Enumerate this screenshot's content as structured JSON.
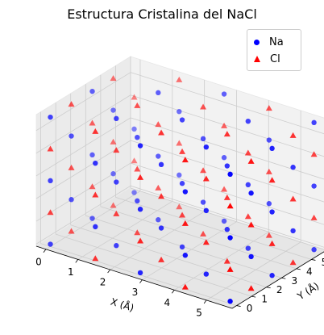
{
  "chart_data": {
    "type": "scatter",
    "projection": "3d",
    "title": "Estructura Cristalina del NaCl",
    "xlabel": "X (Å)",
    "ylabel": "Y (Å)",
    "zlabel": "",
    "xlim": [
      -0.3,
      5.8
    ],
    "ylim": [
      -0.3,
      6.0
    ],
    "zlim": [
      -0.1,
      5.7
    ],
    "xticks": [
      "0",
      "1",
      "2",
      "3",
      "4",
      "5"
    ],
    "yticks": [
      "0",
      "1",
      "2",
      "3",
      "4",
      "5",
      "6"
    ],
    "zticks": [
      "0",
      "1",
      "2",
      "3",
      "4",
      "5"
    ],
    "grid": true,
    "legend_position": "top-right",
    "series": [
      {
        "name": "Na",
        "color": "#0000ff",
        "marker": "circle",
        "points": [
          [
            0,
            0,
            0
          ],
          [
            0,
            2.8,
            0
          ],
          [
            2.8,
            0,
            0
          ],
          [
            2.8,
            2.8,
            0
          ],
          [
            5.6,
            0,
            0
          ],
          [
            0,
            5.6,
            0
          ],
          [
            5.6,
            5.6,
            0
          ],
          [
            5.6,
            2.8,
            0
          ],
          [
            2.8,
            5.6,
            0
          ],
          [
            1.4,
            1.4,
            0
          ],
          [
            4.2,
            1.4,
            0
          ],
          [
            1.4,
            4.2,
            0
          ],
          [
            4.2,
            4.2,
            0
          ],
          [
            1.4,
            0,
            1.4
          ],
          [
            4.2,
            0,
            1.4
          ],
          [
            0,
            1.4,
            1.4
          ],
          [
            2.8,
            1.4,
            1.4
          ],
          [
            5.6,
            1.4,
            1.4
          ],
          [
            1.4,
            2.8,
            1.4
          ],
          [
            4.2,
            2.8,
            1.4
          ],
          [
            0,
            4.2,
            1.4
          ],
          [
            2.8,
            4.2,
            1.4
          ],
          [
            5.6,
            4.2,
            1.4
          ],
          [
            1.4,
            5.6,
            1.4
          ],
          [
            4.2,
            5.6,
            1.4
          ],
          [
            0,
            0,
            2.8
          ],
          [
            2.8,
            0,
            2.8
          ],
          [
            5.6,
            0,
            2.8
          ],
          [
            1.4,
            1.4,
            2.8
          ],
          [
            4.2,
            1.4,
            2.8
          ],
          [
            0,
            2.8,
            2.8
          ],
          [
            2.8,
            2.8,
            2.8
          ],
          [
            5.6,
            2.8,
            2.8
          ],
          [
            1.4,
            4.2,
            2.8
          ],
          [
            4.2,
            4.2,
            2.8
          ],
          [
            0,
            5.6,
            2.8
          ],
          [
            2.8,
            5.6,
            2.8
          ],
          [
            5.6,
            5.6,
            2.8
          ],
          [
            1.4,
            0,
            4.2
          ],
          [
            4.2,
            0,
            4.2
          ],
          [
            0,
            1.4,
            4.2
          ],
          [
            2.8,
            1.4,
            4.2
          ],
          [
            5.6,
            1.4,
            4.2
          ],
          [
            1.4,
            2.8,
            4.2
          ],
          [
            4.2,
            2.8,
            4.2
          ],
          [
            0,
            4.2,
            4.2
          ],
          [
            2.8,
            4.2,
            4.2
          ],
          [
            5.6,
            4.2,
            4.2
          ],
          [
            1.4,
            5.6,
            4.2
          ],
          [
            4.2,
            5.6,
            4.2
          ],
          [
            0,
            0,
            5.6
          ],
          [
            2.8,
            0,
            5.6
          ],
          [
            5.6,
            0,
            5.6
          ],
          [
            1.4,
            1.4,
            5.6
          ],
          [
            4.2,
            1.4,
            5.6
          ],
          [
            0,
            2.8,
            5.6
          ],
          [
            2.8,
            2.8,
            5.6
          ],
          [
            5.6,
            2.8,
            5.6
          ],
          [
            1.4,
            4.2,
            5.6
          ],
          [
            4.2,
            4.2,
            5.6
          ],
          [
            2.8,
            5.6,
            5.6
          ],
          [
            5.6,
            5.6,
            5.6
          ]
        ]
      },
      {
        "name": "Cl",
        "color": "#ff0000",
        "marker": "triangle",
        "points": [
          [
            1.4,
            0,
            0
          ],
          [
            4.2,
            0,
            0
          ],
          [
            0,
            1.4,
            0
          ],
          [
            2.8,
            1.4,
            0
          ],
          [
            5.6,
            1.4,
            0
          ],
          [
            1.4,
            2.8,
            0
          ],
          [
            4.2,
            2.8,
            0
          ],
          [
            0,
            4.2,
            0
          ],
          [
            2.8,
            4.2,
            0
          ],
          [
            5.6,
            4.2,
            0
          ],
          [
            1.4,
            5.6,
            0
          ],
          [
            4.2,
            5.6,
            0
          ],
          [
            0,
            0,
            1.4
          ],
          [
            2.8,
            0,
            1.4
          ],
          [
            5.6,
            0,
            1.4
          ],
          [
            1.4,
            1.4,
            1.4
          ],
          [
            4.2,
            1.4,
            1.4
          ],
          [
            0,
            2.8,
            1.4
          ],
          [
            2.8,
            2.8,
            1.4
          ],
          [
            5.6,
            2.8,
            1.4
          ],
          [
            1.4,
            4.2,
            1.4
          ],
          [
            4.2,
            4.2,
            1.4
          ],
          [
            0,
            5.6,
            1.4
          ],
          [
            2.8,
            5.6,
            1.4
          ],
          [
            5.6,
            5.6,
            1.4
          ],
          [
            1.4,
            0,
            2.8
          ],
          [
            4.2,
            0,
            2.8
          ],
          [
            0,
            1.4,
            2.8
          ],
          [
            2.8,
            1.4,
            2.8
          ],
          [
            5.6,
            1.4,
            2.8
          ],
          [
            1.4,
            2.8,
            2.8
          ],
          [
            4.2,
            2.8,
            2.8
          ],
          [
            0,
            4.2,
            2.8
          ],
          [
            2.8,
            4.2,
            2.8
          ],
          [
            5.6,
            4.2,
            2.8
          ],
          [
            1.4,
            5.6,
            2.8
          ],
          [
            4.2,
            5.6,
            2.8
          ],
          [
            0,
            0,
            4.2
          ],
          [
            2.8,
            0,
            4.2
          ],
          [
            5.6,
            0,
            4.2
          ],
          [
            1.4,
            1.4,
            4.2
          ],
          [
            4.2,
            1.4,
            4.2
          ],
          [
            0,
            2.8,
            4.2
          ],
          [
            2.8,
            2.8,
            4.2
          ],
          [
            5.6,
            2.8,
            4.2
          ],
          [
            1.4,
            4.2,
            4.2
          ],
          [
            4.2,
            4.2,
            4.2
          ],
          [
            0,
            5.6,
            4.2
          ],
          [
            2.8,
            5.6,
            4.2
          ],
          [
            5.6,
            5.6,
            4.2
          ],
          [
            1.4,
            0,
            5.6
          ],
          [
            4.2,
            0,
            5.6
          ],
          [
            0,
            1.4,
            5.6
          ],
          [
            2.8,
            1.4,
            5.6
          ],
          [
            5.6,
            1.4,
            5.6
          ],
          [
            1.4,
            2.8,
            5.6
          ],
          [
            4.2,
            2.8,
            5.6
          ],
          [
            0,
            4.2,
            5.6
          ],
          [
            2.8,
            4.2,
            5.6
          ],
          [
            5.6,
            4.2,
            5.6
          ],
          [
            1.4,
            5.6,
            5.6
          ],
          [
            4.2,
            5.6,
            5.6
          ]
        ]
      }
    ]
  }
}
